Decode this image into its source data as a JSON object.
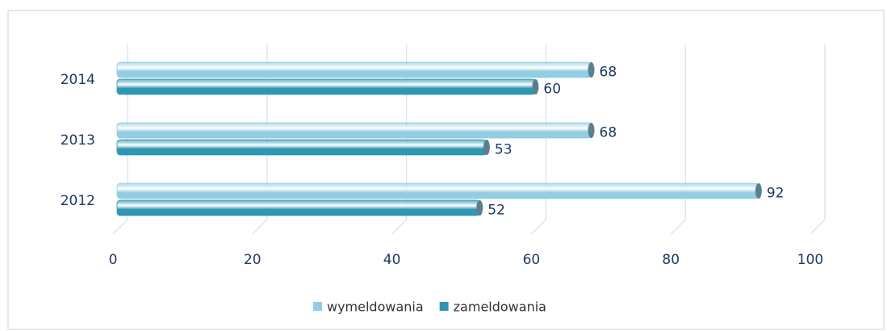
{
  "chart_data": {
    "type": "bar",
    "orientation": "horizontal",
    "categories": [
      "2012",
      "2013",
      "2014"
    ],
    "series": [
      {
        "name": "wymeldowania",
        "color": "#93cde2",
        "values": [
          92,
          68,
          68
        ]
      },
      {
        "name": "zameldowania",
        "color": "#2f97b3",
        "values": [
          52,
          53,
          60
        ]
      }
    ],
    "xlim": [
      0,
      100
    ],
    "xticks": [
      0,
      20,
      40,
      60,
      80,
      100
    ],
    "grid": true,
    "legend": "bottom"
  }
}
